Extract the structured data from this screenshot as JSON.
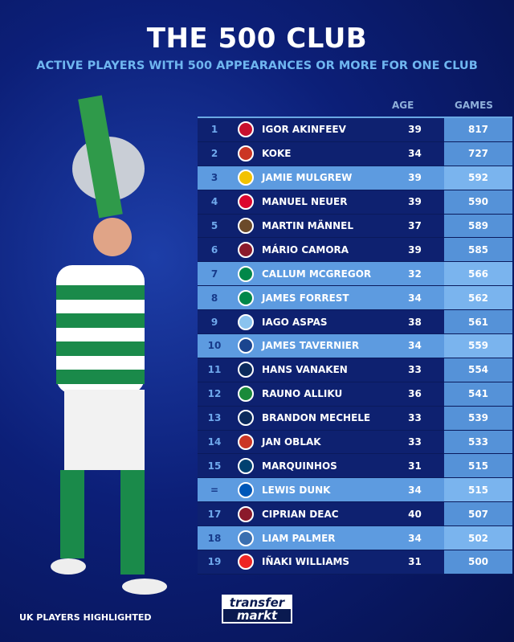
{
  "title": "THE 500 CLUB",
  "subtitle": "ACTIVE PLAYERS WITH 500 APPEARANCES OR MORE FOR ONE CLUB",
  "columns": {
    "age": "AGE",
    "games": "GAMES"
  },
  "rows": [
    {
      "rank": "1",
      "name": "IGOR AKINFEEV",
      "age": "39",
      "games": "817",
      "uk": false,
      "club_color": "#c8102e"
    },
    {
      "rank": "2",
      "name": "KOKE",
      "age": "34",
      "games": "727",
      "uk": false,
      "club_color": "#cb3524"
    },
    {
      "rank": "3",
      "name": "JAMIE MULGREW",
      "age": "39",
      "games": "592",
      "uk": true,
      "club_color": "#f2c200"
    },
    {
      "rank": "4",
      "name": "MANUEL NEUER",
      "age": "39",
      "games": "590",
      "uk": false,
      "club_color": "#dc052d"
    },
    {
      "rank": "5",
      "name": "MARTIN MÄNNEL",
      "age": "37",
      "games": "589",
      "uk": false,
      "club_color": "#6b4a2a"
    },
    {
      "rank": "6",
      "name": "MÁRIO CAMORA",
      "age": "39",
      "games": "585",
      "uk": false,
      "club_color": "#8b1a2b"
    },
    {
      "rank": "7",
      "name": "CALLUM MCGREGOR",
      "age": "32",
      "games": "566",
      "uk": true,
      "club_color": "#018749"
    },
    {
      "rank": "8",
      "name": "JAMES FORREST",
      "age": "34",
      "games": "562",
      "uk": true,
      "club_color": "#018749"
    },
    {
      "rank": "9",
      "name": "IAGO ASPAS",
      "age": "38",
      "games": "561",
      "uk": false,
      "club_color": "#8ac3ee"
    },
    {
      "rank": "10",
      "name": "JAMES TAVERNIER",
      "age": "34",
      "games": "559",
      "uk": true,
      "club_color": "#1b458f"
    },
    {
      "rank": "11",
      "name": "HANS VANAKEN",
      "age": "33",
      "games": "554",
      "uk": false,
      "club_color": "#0b2a5c"
    },
    {
      "rank": "12",
      "name": "RAUNO ALLIKU",
      "age": "36",
      "games": "541",
      "uk": false,
      "club_color": "#1a8a3a"
    },
    {
      "rank": "13",
      "name": "BRANDON MECHELE",
      "age": "33",
      "games": "539",
      "uk": false,
      "club_color": "#0b2a5c"
    },
    {
      "rank": "14",
      "name": "JAN OBLAK",
      "age": "33",
      "games": "533",
      "uk": false,
      "club_color": "#cb3524"
    },
    {
      "rank": "15",
      "name": "MARQUINHOS",
      "age": "31",
      "games": "515",
      "uk": false,
      "club_color": "#004170"
    },
    {
      "rank": "=",
      "name": "LEWIS DUNK",
      "age": "34",
      "games": "515",
      "uk": true,
      "club_color": "#0057b8"
    },
    {
      "rank": "17",
      "name": "CIPRIAN DEAC",
      "age": "40",
      "games": "507",
      "uk": false,
      "club_color": "#8b1a2b"
    },
    {
      "rank": "18",
      "name": "LIAM PALMER",
      "age": "34",
      "games": "502",
      "uk": true,
      "club_color": "#3a6fb0"
    },
    {
      "rank": "19",
      "name": "IÑAKI WILLIAMS",
      "age": "31",
      "games": "500",
      "uk": false,
      "club_color": "#ee2523"
    }
  ],
  "footer": "UK PLAYERS HIGHLIGHTED",
  "logo": {
    "line1": "transfer",
    "line2": "markt"
  }
}
